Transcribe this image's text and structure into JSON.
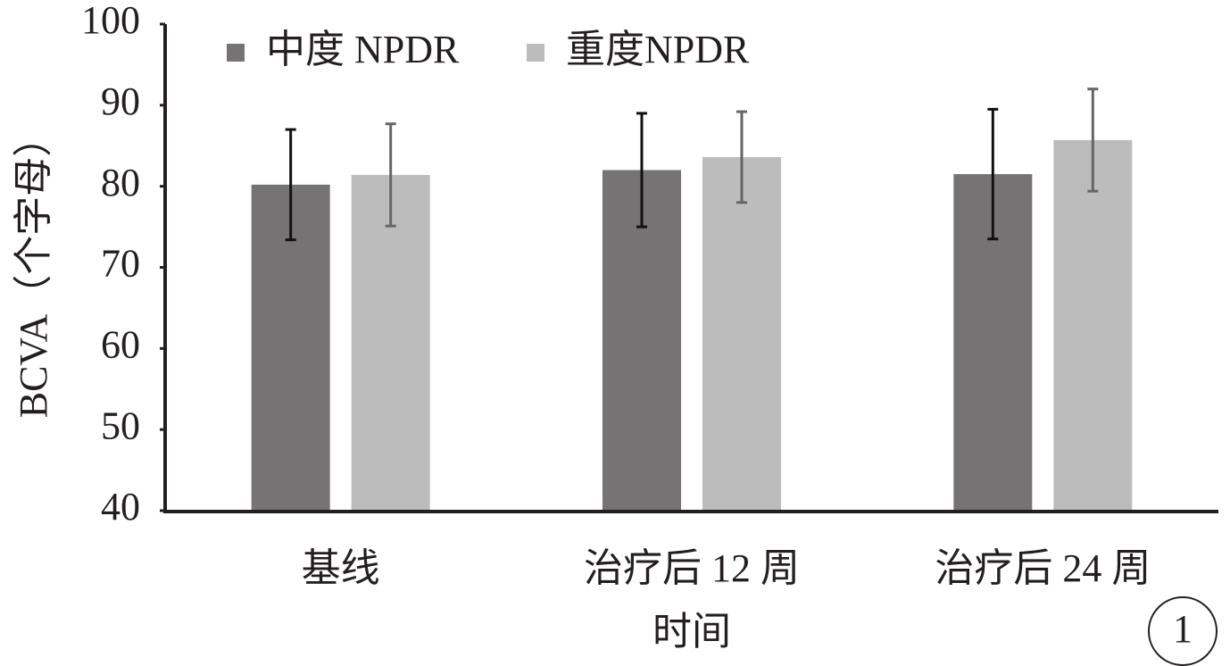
{
  "chart_data": {
    "type": "bar",
    "y_label": "BCVA（个字母）",
    "x_label": "时间",
    "annotation": "1",
    "categories": [
      "基线",
      "治疗后 12 周",
      "治疗后 24 周"
    ],
    "series": [
      {
        "name": "中度 NPDR",
        "color": "#767374",
        "error_color": "#111111",
        "values": [
          80.2,
          82.0,
          81.5
        ],
        "errors": [
          6.8,
          7.0,
          8.0
        ]
      },
      {
        "name": "重度NPDR",
        "color": "#bcbcbc",
        "error_color": "#666666",
        "values": [
          81.4,
          83.6,
          85.7
        ],
        "errors": [
          6.3,
          5.6,
          6.3
        ]
      }
    ],
    "ylim": [
      40,
      100
    ],
    "yticks": [
      40,
      50,
      60,
      70,
      80,
      90,
      100
    ],
    "legend": "top-left"
  }
}
